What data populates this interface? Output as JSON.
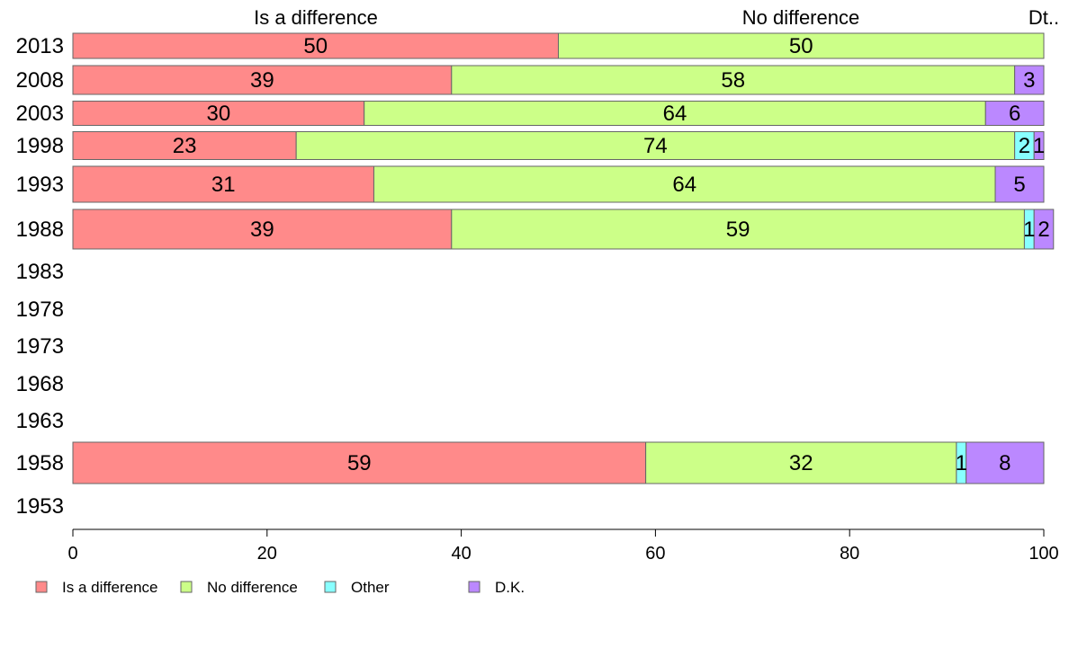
{
  "chart_data": {
    "type": "bar",
    "orientation": "horizontal",
    "stacked": true,
    "xlim": [
      0,
      100
    ],
    "x_ticks": [
      "0",
      "20",
      "40",
      "60",
      "80",
      "100"
    ],
    "categories": [
      "2013",
      "2008",
      "2003",
      "1998",
      "1993",
      "1988",
      "1983",
      "1978",
      "1973",
      "1968",
      "1963",
      "1958",
      "1953"
    ],
    "series": [
      {
        "name": "Is a difference",
        "color": "#ff8a8a",
        "values": [
          50,
          39,
          30,
          23,
          31,
          39,
          null,
          null,
          null,
          null,
          null,
          59,
          null
        ]
      },
      {
        "name": "No difference",
        "color": "#ccff88",
        "values": [
          50,
          58,
          64,
          74,
          64,
          59,
          null,
          null,
          null,
          null,
          null,
          32,
          null
        ]
      },
      {
        "name": "Other",
        "color": "#88ffff",
        "values": [
          0,
          0,
          0,
          2,
          0,
          1,
          null,
          null,
          null,
          null,
          null,
          1,
          null
        ]
      },
      {
        "name": "D.K.",
        "color": "#bb88ff",
        "values": [
          0,
          3,
          6,
          1,
          5,
          2,
          null,
          null,
          null,
          null,
          null,
          8,
          null
        ]
      }
    ],
    "top_labels": [
      "Is a difference",
      "No difference",
      "Dt.."
    ],
    "legend": [
      "Is a difference",
      "No difference",
      "Other",
      "D.K."
    ],
    "legend_position": "bottom-left",
    "grid": false
  }
}
